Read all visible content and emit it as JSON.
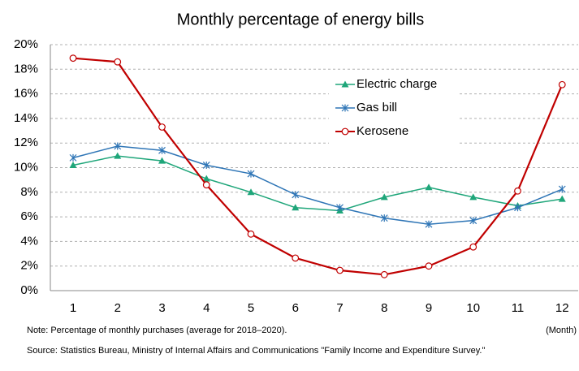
{
  "chart_data": {
    "type": "line",
    "title": "Monthly percentage of energy bills",
    "categories": [
      "1",
      "2",
      "3",
      "4",
      "5",
      "6",
      "7",
      "8",
      "9",
      "10",
      "11",
      "12"
    ],
    "x_label": "(Month)",
    "series": [
      {
        "name": "Electric charge",
        "color": "#1fa67a",
        "marker": "triangle",
        "values": [
          10.2,
          10.95,
          10.55,
          9.1,
          8.0,
          6.75,
          6.5,
          7.6,
          8.4,
          7.6,
          6.9,
          7.45
        ]
      },
      {
        "name": "Gas bill",
        "color": "#2e75b6",
        "marker": "star",
        "values": [
          10.8,
          11.75,
          11.4,
          10.2,
          9.5,
          7.8,
          6.75,
          5.9,
          5.4,
          5.7,
          6.75,
          8.25
        ]
      },
      {
        "name": "Kerosene",
        "color": "#c00000",
        "marker": "circle",
        "values": [
          18.9,
          18.6,
          13.3,
          8.6,
          4.6,
          2.65,
          1.65,
          1.3,
          2.0,
          3.55,
          8.1,
          16.75
        ]
      }
    ],
    "ylim": [
      0,
      20
    ],
    "yticks": [
      {
        "value": 0,
        "label": "0%"
      },
      {
        "value": 2,
        "label": "2%"
      },
      {
        "value": 4,
        "label": "4%"
      },
      {
        "value": 6,
        "label": "6%"
      },
      {
        "value": 8,
        "label": "8%"
      },
      {
        "value": 10,
        "label": "10%"
      },
      {
        "value": 12,
        "label": "12%"
      },
      {
        "value": 14,
        "label": "14%"
      },
      {
        "value": 16,
        "label": "16%"
      },
      {
        "value": 18,
        "label": "18%"
      },
      {
        "value": 20,
        "label": "20%"
      }
    ],
    "grid": true,
    "legend": "top-right",
    "note": "Note: Percentage of monthly purchases (average for 2018–2020).",
    "source": "Source: Statistics Bureau, Ministry of Internal Affairs and Communications \"Family Income and Expenditure Survey.\""
  }
}
